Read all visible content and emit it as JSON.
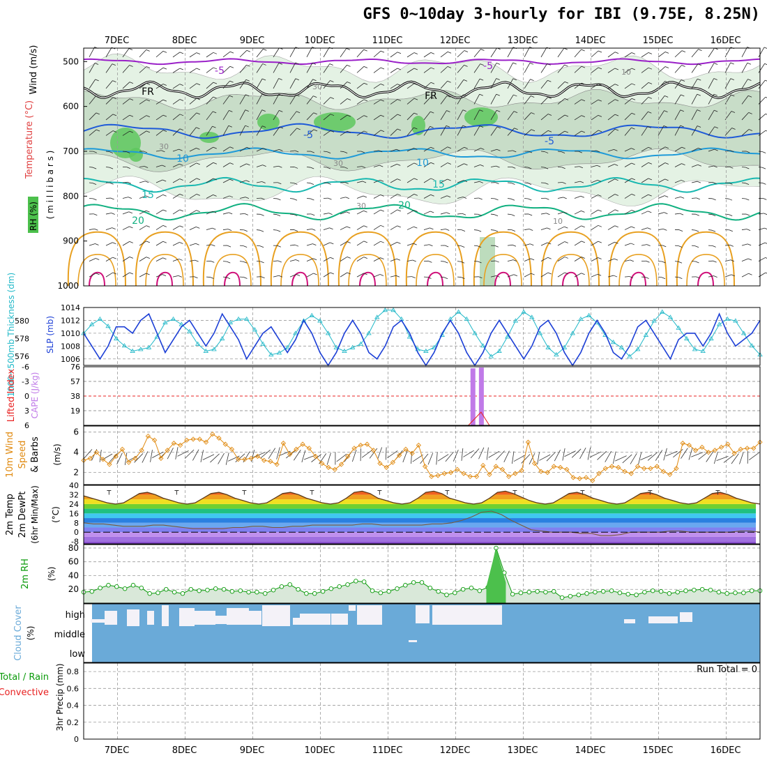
{
  "title": "GFS 0~10day 3-hourly for IBI (9.75E, 8.25N)",
  "colors": {
    "pressure_series": "#1c3fd6",
    "thickness_series": "#20b8c8",
    "wind_speed": "#e08a10",
    "rh_line": "#0a9a0a",
    "cloud": "#6aaad8",
    "temp_purple": "#9a20c8",
    "temp_blue": "#1e5ad8",
    "temp_sky": "#1e9ad8",
    "temp_teal": "#18b8b0",
    "temp_green": "#10b080",
    "temp_orange": "#e8a020",
    "temp_pink": "#d0107a",
    "freezing_level": "#000000",
    "cape": "#c07ae8",
    "lifted_index": "#e82020"
  },
  "date_labels": [
    "7DEC",
    "8DEC",
    "9DEC",
    "10DEC",
    "11DEC",
    "12DEC",
    "13DEC",
    "14DEC",
    "15DEC",
    "16DEC"
  ],
  "panels": {
    "upper_air": {
      "ylabel_wind": "Wind (m/s)",
      "ylabel_temp": "Temperature (°C)",
      "ylabel_rh": "RH (%)",
      "ylabel_units": "( m i l l i b a r s )",
      "y_ticks": [
        "500",
        "600",
        "700",
        "800",
        "900",
        "1000"
      ],
      "isotherm_labels": [
        "-5",
        "-5",
        "FR",
        "FR",
        "-5",
        "-5",
        "10",
        "10",
        "15",
        "15",
        "20",
        "20",
        "30",
        "30",
        "30",
        "30",
        "10",
        "10"
      ]
    },
    "pressure": {
      "ylabel_thickness": "1000~500mb Thickness (dm)",
      "ylabel_slp": "SLP (mb)",
      "left_ticks": [
        "580",
        "578",
        "576"
      ],
      "right_ticks": [
        "1014",
        "1012",
        "1010",
        "1008",
        "1006"
      ]
    },
    "cape": {
      "ylabel_li": "Lifted Index",
      "ylabel_cape": "CAPE (J/kg)",
      "left_ticks": [
        "-6",
        "-3",
        "0",
        "3",
        "6"
      ],
      "right_ticks": [
        "76",
        "57",
        "38",
        "19"
      ]
    },
    "wind10m": {
      "ylabel_a": "10m Wind",
      "ylabel_b": "Speed",
      "ylabel_c": "& Barbs",
      "ylabel_units": "(m/s)",
      "y_ticks": [
        "6",
        "4",
        "2"
      ]
    },
    "temp2m": {
      "ylabel_a": "2m Temp",
      "ylabel_b": "2m DewPt",
      "ylabel_c": "(6hr Min/Max)",
      "ylabel_units": "(°C)",
      "y_ticks": [
        "40",
        "32",
        "24",
        "16",
        "8",
        "0",
        "-8"
      ]
    },
    "rh2m": {
      "ylabel_a": "2m RH",
      "ylabel_units": "(%)",
      "y_ticks": [
        "80",
        "60",
        "40",
        "20"
      ]
    },
    "cloud": {
      "ylabel": "Cloud Cover",
      "ylabel_units": "(%)",
      "levels": [
        "high",
        "middle",
        "low"
      ]
    },
    "precip": {
      "ylabel_a": "Total / Rain",
      "ylabel_b": "Convective",
      "ylabel_c": "3hr Precip (mm)",
      "run_total": "Run Total = 0",
      "y_ticks": [
        "0.8",
        "0.6",
        "0.4",
        "0.2",
        "0"
      ]
    }
  },
  "chart_data": [
    {
      "type": "line",
      "title": "",
      "x_start": "2023-12-06T12Z",
      "x_step_hours": 3,
      "series": [
        {
          "name": "SLP (mb)",
          "values": [
            1010,
            1008,
            1006,
            1008,
            1011,
            1011,
            1010,
            1012,
            1013,
            1010,
            1007,
            1009,
            1011,
            1012,
            1010,
            1008,
            1010,
            1013,
            1011,
            1009,
            1006,
            1008,
            1010,
            1011,
            1009,
            1007,
            1009,
            1012,
            1010,
            1007,
            1005,
            1007,
            1010,
            1012,
            1010,
            1007,
            1006,
            1008,
            1011,
            1012,
            1010,
            1007,
            1005,
            1007,
            1010,
            1012,
            1010,
            1007,
            1005,
            1007,
            1010,
            1012,
            1010,
            1008,
            1006,
            1008,
            1011,
            1012,
            1010,
            1007,
            1005,
            1007,
            1010,
            1012,
            1010,
            1007,
            1006,
            1008,
            1011,
            1012,
            1010,
            1008,
            1006,
            1009,
            1010,
            1010,
            1008,
            1010,
            1013,
            1010,
            1008,
            1009,
            1010,
            1012
          ]
        },
        {
          "name": "1000~500mb Thickness (dm)",
          "values": [
            578.6,
            579.6,
            580.2,
            579.4,
            578.0,
            577.2,
            576.6,
            576.8,
            577.0,
            578.2,
            579.8,
            580.2,
            579.6,
            578.8,
            577.4,
            576.6,
            576.8,
            578.0,
            579.8,
            580.2,
            580.2,
            579.0,
            577.4,
            576.2,
            576.4,
            577.0,
            578.6,
            580.0,
            580.6,
            580.0,
            578.6,
            577.0,
            576.6,
            577.0,
            577.4,
            578.6,
            580.4,
            581.2,
            581.2,
            580.2,
            578.2,
            576.8,
            576.6,
            577.0,
            578.4,
            580.2,
            581.0,
            580.2,
            578.6,
            577.2,
            576.0,
            576.6,
            578.2,
            580.0,
            581.0,
            580.4,
            578.6,
            577.0,
            576.2,
            577.0,
            578.6,
            580.2,
            580.6,
            579.8,
            578.4,
            577.6,
            577.0,
            576.0,
            576.8,
            578.4,
            580.0,
            581.0,
            580.4,
            579.2,
            578.0,
            576.8,
            576.6,
            578.0,
            579.6,
            580.2,
            580.0,
            578.6,
            577.2,
            576.2
          ]
        }
      ],
      "ylim_slp": [
        1005,
        1014
      ],
      "ylim_thickness": [
        575,
        581.5
      ]
    },
    {
      "type": "bar",
      "title": "",
      "series": [
        {
          "name": "CAPE (J/kg)",
          "x": [
            "12DEC 06Z",
            "12DEC 09Z"
          ],
          "values": [
            74,
            75
          ]
        }
      ],
      "ylim": [
        0,
        76
      ]
    },
    {
      "type": "line",
      "title": "",
      "x_start": "2023-12-06T12Z",
      "x_step_hours": 3,
      "series": [
        {
          "name": "10m Wind Speed (m/s)",
          "values": [
            3.2,
            3.4,
            4.0,
            3.3,
            2.8,
            3.6,
            4.3,
            3.0,
            3.4,
            4.2,
            5.6,
            5.2,
            3.4,
            4.2,
            4.9,
            4.7,
            5.2,
            5.3,
            5.3,
            5.0,
            5.8,
            5.4,
            4.8,
            4.3,
            3.3,
            3.3,
            3.4,
            3.6,
            3.2,
            3.1,
            2.8,
            4.9,
            3.8,
            4.3,
            4.8,
            4.4,
            3.6,
            2.9,
            2.5,
            2.3,
            2.8,
            3.6,
            4.4,
            4.7,
            4.8,
            4.2,
            2.9,
            2.5,
            3.0,
            3.7,
            4.3,
            3.9,
            4.7,
            2.6,
            1.6,
            1.7,
            1.9,
            2.0,
            2.3,
            1.9,
            1.6,
            1.6,
            2.7,
            1.8,
            2.6,
            2.3,
            1.6,
            1.9,
            2.2,
            5.0,
            2.9,
            2.1,
            2.0,
            2.6,
            2.5,
            2.3,
            1.5,
            1.4,
            1.5,
            1.2,
            1.9,
            2.4,
            2.6,
            2.5,
            2.1,
            1.9,
            2.6,
            2.4,
            2.4,
            2.6,
            2.1,
            1.8,
            2.4,
            4.9,
            4.7,
            4.2,
            4.5,
            4.0,
            4.2,
            4.5,
            4.8,
            3.9,
            4.3,
            4.4,
            4.4,
            5.0
          ]
        }
      ],
      "ylim": [
        0.8,
        6.6
      ]
    },
    {
      "type": "area",
      "title": "",
      "x_start": "2023-12-06T12Z",
      "x_step_hours": 3,
      "series": [
        {
          "name": "2m Temp (°C)",
          "values": [
            31,
            29,
            27,
            25,
            24,
            25,
            29,
            33,
            34,
            32,
            29,
            27,
            25,
            24,
            25,
            29,
            33,
            34,
            32,
            29,
            27,
            25,
            24,
            25,
            29,
            33,
            34,
            32,
            29,
            27,
            25,
            24,
            25,
            29,
            34,
            35,
            33,
            29,
            27,
            25,
            24,
            25,
            29,
            34,
            35,
            33,
            29,
            27,
            25,
            24,
            25,
            29,
            34,
            35,
            33,
            30,
            27,
            25,
            24,
            25,
            29,
            33,
            34,
            32,
            29,
            27,
            25,
            24,
            25,
            29,
            33,
            34,
            32,
            29,
            27,
            25,
            24,
            25,
            29,
            33,
            34,
            32,
            29,
            27,
            25,
            24
          ]
        },
        {
          "name": "2m DewPt (°C)",
          "values": [
            8,
            7,
            7,
            6,
            5,
            5,
            5,
            6,
            6,
            5,
            4,
            3,
            3,
            3,
            3,
            4,
            4,
            5,
            5,
            4,
            4,
            5,
            5,
            6,
            6,
            6,
            6,
            6,
            7,
            7,
            6,
            6,
            6,
            6,
            6,
            7,
            7,
            8,
            10,
            13,
            17,
            18,
            15,
            10,
            6,
            2,
            1,
            0,
            0,
            0,
            -1,
            -1,
            -3,
            -3,
            -2,
            0,
            0,
            0,
            0,
            1,
            1,
            0,
            0,
            0,
            0,
            0,
            1,
            1,
            0
          ]
        }
      ],
      "ylim": [
        -10,
        40
      ]
    },
    {
      "type": "line",
      "title": "",
      "x_start": "2023-12-06T12Z",
      "x_step_hours": 3,
      "series": [
        {
          "name": "2m RH (%)",
          "values": [
            16,
            17,
            22,
            26,
            24,
            21,
            26,
            22,
            14,
            15,
            20,
            16,
            14,
            20,
            18,
            19,
            21,
            20,
            17,
            18,
            16,
            16,
            14,
            19,
            24,
            27,
            20,
            14,
            14,
            17,
            21,
            24,
            27,
            32,
            31,
            18,
            15,
            17,
            21,
            26,
            30,
            30,
            22,
            17,
            12,
            15,
            20,
            22,
            18,
            23,
            80,
            44,
            13,
            15,
            16,
            17,
            16,
            17,
            8,
            10,
            12,
            14,
            16,
            17,
            18,
            15,
            13,
            12,
            16,
            18,
            17,
            14,
            16,
            18,
            19,
            20,
            19,
            16,
            14,
            15,
            15,
            18,
            18
          ]
        }
      ],
      "ylim": [
        0,
        85
      ]
    },
    {
      "type": "bar",
      "title": "",
      "series": [
        {
          "name": "3hr Precip (mm)",
          "values": []
        }
      ],
      "ylim": [
        0,
        0.9
      ]
    }
  ]
}
